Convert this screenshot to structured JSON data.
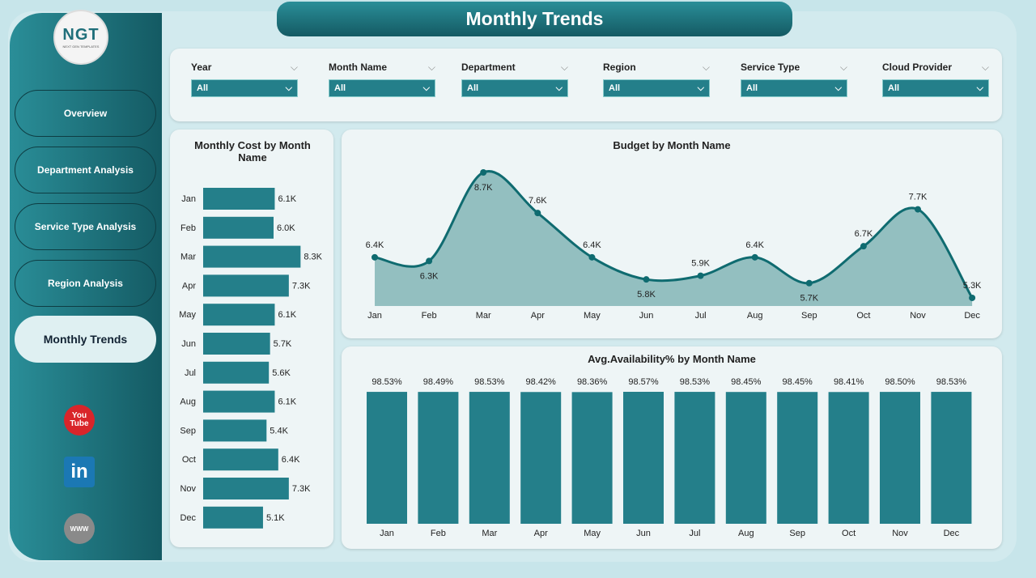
{
  "header": {
    "title": "Monthly Trends"
  },
  "logo": {
    "text": "NGT",
    "subtext": "NEXT GEN TEMPLATES"
  },
  "sidebar": {
    "items": [
      {
        "label": "Overview"
      },
      {
        "label": "Department Analysis"
      },
      {
        "label": "Service Type Analysis"
      },
      {
        "label": "Region Analysis"
      },
      {
        "label": "Monthly Trends",
        "active": true
      }
    ],
    "social": [
      {
        "icon": "youtube-icon",
        "label": "You Tube"
      },
      {
        "icon": "linkedin-icon",
        "label": "in"
      },
      {
        "icon": "globe-icon",
        "label": "WWW"
      }
    ]
  },
  "filters": [
    {
      "label": "Year",
      "value": "All"
    },
    {
      "label": "Month Name",
      "value": "All"
    },
    {
      "label": "Department",
      "value": "All"
    },
    {
      "label": "Region",
      "value": "All"
    },
    {
      "label": "Service Type",
      "value": "All"
    },
    {
      "label": "Cloud Provider",
      "value": "All"
    }
  ],
  "colors": {
    "accent": "#247f8a",
    "line": "#0f6b70",
    "area": "#93bfc0"
  },
  "chart_data": [
    {
      "type": "bar",
      "orientation": "horizontal",
      "title": "Monthly Cost by Month Name",
      "categories": [
        "Jan",
        "Feb",
        "Mar",
        "Apr",
        "May",
        "Jun",
        "Jul",
        "Aug",
        "Sep",
        "Oct",
        "Nov",
        "Dec"
      ],
      "values": [
        6.1,
        6.0,
        8.3,
        7.3,
        6.1,
        5.7,
        5.6,
        6.1,
        5.4,
        6.4,
        7.3,
        5.1
      ],
      "labels": [
        "6.1K",
        "6.0K",
        "8.3K",
        "7.3K",
        "6.1K",
        "5.7K",
        "5.6K",
        "6.1K",
        "5.4K",
        "6.4K",
        "7.3K",
        "5.1K"
      ],
      "unit": "K"
    },
    {
      "type": "area",
      "title": "Budget by Month Name",
      "categories": [
        "Jan",
        "Feb",
        "Mar",
        "Apr",
        "May",
        "Jun",
        "Jul",
        "Aug",
        "Sep",
        "Oct",
        "Nov",
        "Dec"
      ],
      "values": [
        6.4,
        6.3,
        8.7,
        7.6,
        6.4,
        5.8,
        5.9,
        6.4,
        5.7,
        6.7,
        7.7,
        5.3
      ],
      "labels": [
        "6.4K",
        "6.3K",
        "8.7K",
        "7.6K",
        "6.4K",
        "5.8K",
        "5.9K",
        "6.4K",
        "5.7K",
        "6.7K",
        "7.7K",
        "5.3K"
      ],
      "ylim": [
        5.08,
        8.7
      ],
      "unit": "K"
    },
    {
      "type": "bar",
      "title": "Avg.Availability% by Month Name",
      "categories": [
        "Jan",
        "Feb",
        "Mar",
        "Apr",
        "May",
        "Jun",
        "Jul",
        "Aug",
        "Sep",
        "Oct",
        "Nov",
        "Dec"
      ],
      "values": [
        98.53,
        98.49,
        98.53,
        98.42,
        98.36,
        98.57,
        98.53,
        98.45,
        98.45,
        98.41,
        98.5,
        98.53
      ],
      "labels": [
        "98.53%",
        "98.49%",
        "98.53%",
        "98.42%",
        "98.36%",
        "98.57%",
        "98.53%",
        "98.45%",
        "98.45%",
        "98.41%",
        "98.50%",
        "98.53%"
      ],
      "ylim": [
        0,
        98.57
      ]
    }
  ]
}
